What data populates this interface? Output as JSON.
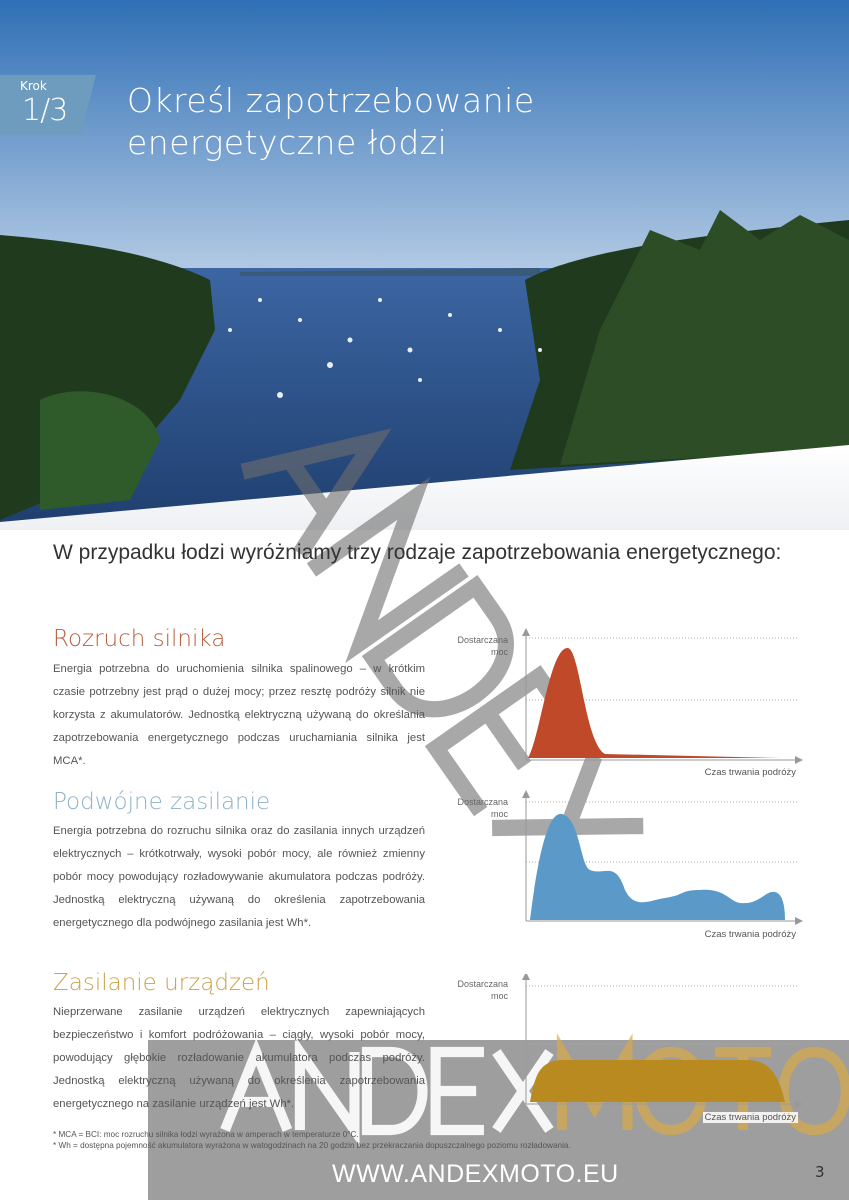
{
  "badge": {
    "label": "Krok",
    "step": "1/3"
  },
  "title": {
    "line1": "Określ zapotrzebowanie",
    "line2": "energetyczne łodzi"
  },
  "intro": "W przypadku łodzi wyróżniamy trzy rodzaje zapotrzebowania energetycznego:",
  "sections": [
    {
      "heading": "Rozruch silnika",
      "color": "#b5603f",
      "body": "Energia potrzebna do uruchomienia silnika spalinowego – w krótkim czasie potrzebny jest prąd o dużej mocy; przez resztę podróży silnik nie korzysta z akumulatorów. Jednostką elektryczną używaną do określania zapotrzebowania energetycznego podczas uruchamiania silnika jest MCA*."
    },
    {
      "heading": "Podwójne zasilanie",
      "color": "#8fb2c6",
      "body": "Energia potrzebna do rozruchu silnika oraz do zasilania innych urządzeń elektrycznych – krótkotrwały, wysoki pobór mocy, ale również zmienny pobór mocy powodujący rozładowywanie akumulatora podczas podróży. Jednostką elektryczną używaną do określenia zapotrzebowania energetycznego dla podwójnego zasilania jest Wh*."
    },
    {
      "heading": "Zasilanie urządzeń",
      "color": "#c9a24a",
      "body": "Nieprzerwane zasilanie urządzeń elektrycznych zapewniających bezpieczeństwo i komfort podróżowania – ciągły, wysoki pobór mocy, powodujący głębokie rozładowanie akumulatora podczas podróży. Jednostką elektryczną używaną do określenia zapotrzebowania energetycznego na zasilanie urządzeń jest Wh*."
    }
  ],
  "diagrams": [
    {
      "ylabel1": "Dostarczana",
      "ylabel2": "moc",
      "xlabel": "Czas trwania podróży",
      "color": "#c0492a"
    },
    {
      "ylabel1": "Dostarczana",
      "ylabel2": "moc",
      "xlabel": "Czas trwania podróży",
      "color": "#5b9ac8"
    },
    {
      "ylabel1": "Dostarczana",
      "ylabel2": "moc",
      "xlabel": "Czas trwania podróży",
      "color": "#b88a20"
    }
  ],
  "footnotes": [
    "* MCA = BCI: moc rozruchu silnika łodzi wyrażona w amperach w temperaturze 0°C.",
    "* Wh = dostępna pojemność akumulatora wyrażona w watogodzinach na 20 godzin bez przekraczania dopuszczalnego poziomu rozładowania."
  ],
  "watermark": {
    "diagonal": "ANDEX",
    "brand_a": "ANDEX",
    "brand_b": "MOTO",
    "url": "WWW.ANDEXMOTO.EU"
  },
  "page_number": "3"
}
